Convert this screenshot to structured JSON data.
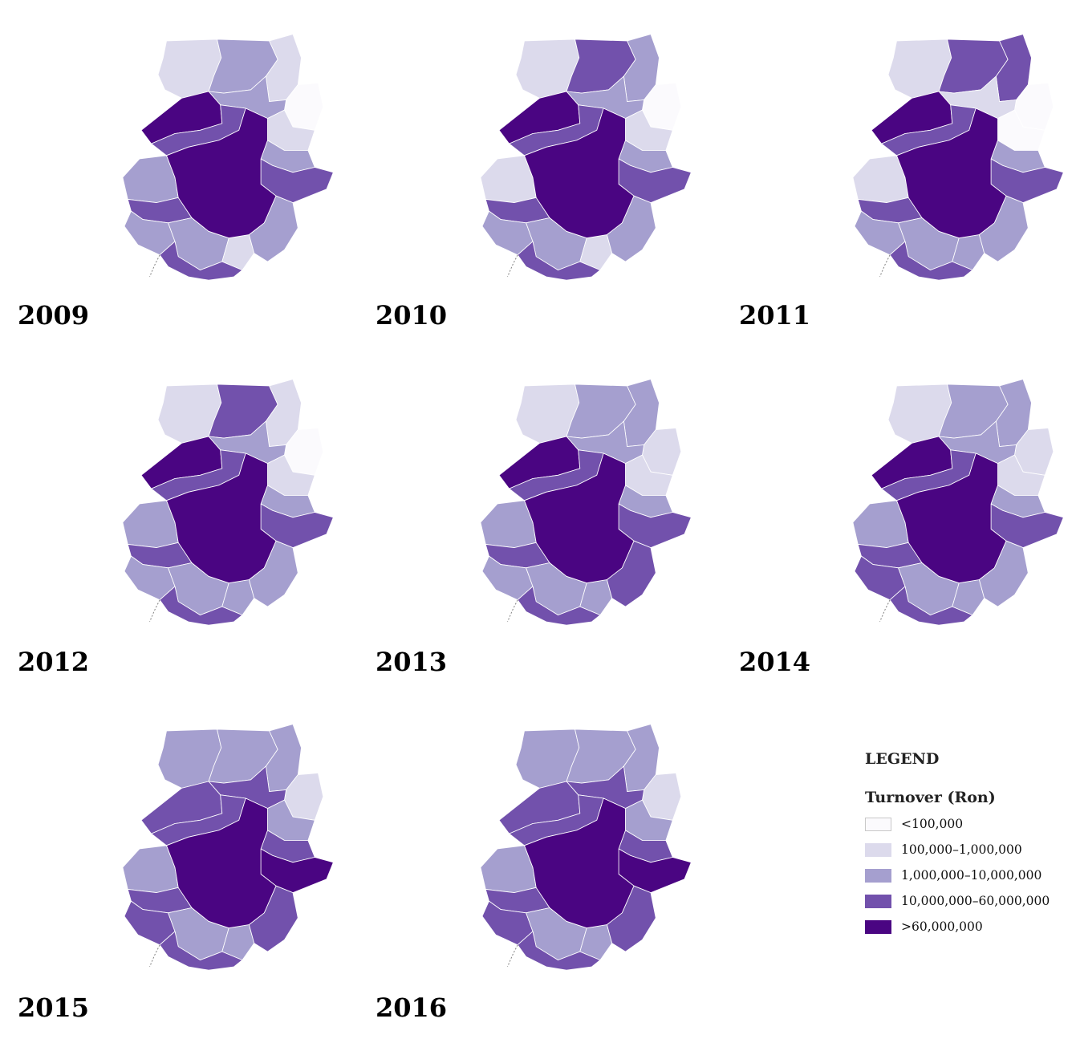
{
  "classes": [
    {
      "key": "c1",
      "label": "<100,000",
      "color": "#fbfafd"
    },
    {
      "key": "c2",
      "label": "100,000–1,000,000",
      "color": "#dcdaec"
    },
    {
      "key": "c3",
      "label": "1,000,000–10,000,000",
      "color": "#a59fcf"
    },
    {
      "key": "c4",
      "label": "10,000,000–60,000,000",
      "color": "#7251ac"
    },
    {
      "key": "c5",
      "label": ">60,000,000",
      "color": "#4a0582"
    }
  ],
  "legend": {
    "title": "LEGEND",
    "subtitle": "Turnover (Ron)"
  },
  "maps": [
    {
      "year": "2009",
      "regions": {
        "core": "c5",
        "nw": "c5",
        "n1": "c2",
        "n2": "c3",
        "n3": "c2",
        "mid_w": "c4",
        "mid_n": "c3",
        "ne": "c1",
        "e1": "c2",
        "e2": "c3",
        "e3": "c4",
        "w1": "c3",
        "w2": "c4",
        "sw": "c3",
        "s1": "c3",
        "s2": "c2",
        "se": "c3",
        "ring": "c4"
      }
    },
    {
      "year": "2010",
      "regions": {
        "core": "c5",
        "nw": "c5",
        "n1": "c2",
        "n2": "c4",
        "n3": "c3",
        "mid_w": "c4",
        "mid_n": "c3",
        "ne": "c1",
        "e1": "c2",
        "e2": "c3",
        "e3": "c4",
        "w1": "c2",
        "w2": "c4",
        "sw": "c3",
        "s1": "c3",
        "s2": "c2",
        "se": "c3",
        "ring": "c4"
      }
    },
    {
      "year": "2011",
      "regions": {
        "core": "c5",
        "nw": "c5",
        "n1": "c2",
        "n2": "c4",
        "n3": "c4",
        "mid_w": "c4",
        "mid_n": "c2",
        "ne": "c1",
        "e1": "c1",
        "e2": "c3",
        "e3": "c4",
        "w1": "c2",
        "w2": "c4",
        "sw": "c3",
        "s1": "c3",
        "s2": "c3",
        "se": "c3",
        "ring": "c4"
      }
    },
    {
      "year": "2012",
      "regions": {
        "core": "c5",
        "nw": "c5",
        "n1": "c2",
        "n2": "c4",
        "n3": "c2",
        "mid_w": "c4",
        "mid_n": "c3",
        "ne": "c1",
        "e1": "c2",
        "e2": "c3",
        "e3": "c4",
        "w1": "c3",
        "w2": "c4",
        "sw": "c3",
        "s1": "c3",
        "s2": "c3",
        "se": "c3",
        "ring": "c4"
      }
    },
    {
      "year": "2013",
      "regions": {
        "core": "c5",
        "nw": "c5",
        "n1": "c2",
        "n2": "c3",
        "n3": "c3",
        "mid_w": "c4",
        "mid_n": "c3",
        "ne": "c2",
        "e1": "c2",
        "e2": "c3",
        "e3": "c4",
        "w1": "c3",
        "w2": "c4",
        "sw": "c3",
        "s1": "c3",
        "s2": "c3",
        "se": "c4",
        "ring": "c4"
      }
    },
    {
      "year": "2014",
      "regions": {
        "core": "c5",
        "nw": "c5",
        "n1": "c2",
        "n2": "c3",
        "n3": "c3",
        "mid_w": "c4",
        "mid_n": "c3",
        "ne": "c2",
        "e1": "c2",
        "e2": "c3",
        "e3": "c4",
        "w1": "c3",
        "w2": "c4",
        "sw": "c4",
        "s1": "c3",
        "s2": "c3",
        "se": "c3",
        "ring": "c4"
      }
    },
    {
      "year": "2015",
      "regions": {
        "core": "c5",
        "nw": "c4",
        "n1": "c3",
        "n2": "c3",
        "n3": "c3",
        "mid_w": "c4",
        "mid_n": "c4",
        "ne": "c2",
        "e1": "c3",
        "e2": "c4",
        "e3": "c5",
        "w1": "c3",
        "w2": "c4",
        "sw": "c4",
        "s1": "c3",
        "s2": "c3",
        "se": "c4",
        "ring": "c4"
      }
    },
    {
      "year": "2016",
      "regions": {
        "core": "c5",
        "nw": "c4",
        "n1": "c3",
        "n2": "c3",
        "n3": "c3",
        "mid_w": "c4",
        "mid_n": "c4",
        "ne": "c2",
        "e1": "c3",
        "e2": "c4",
        "e3": "c5",
        "w1": "c3",
        "w2": "c4",
        "sw": "c4",
        "s1": "c3",
        "s2": "c3",
        "se": "c4",
        "ring": "c4"
      }
    }
  ]
}
